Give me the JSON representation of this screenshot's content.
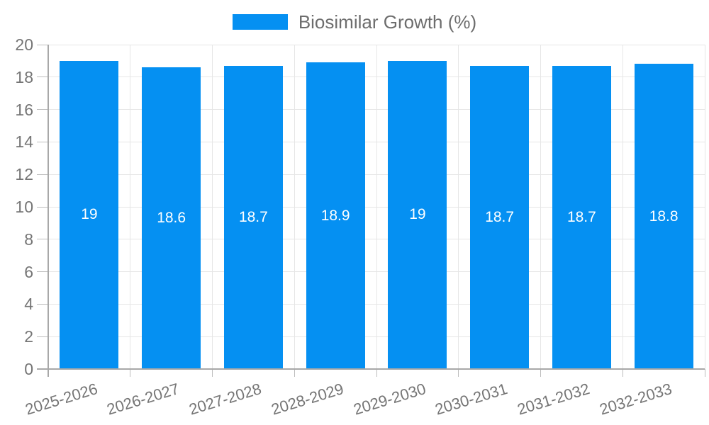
{
  "chart_data": {
    "type": "bar",
    "legend_label": "Biosimilar Growth (%)",
    "legend_position": "top-center",
    "categories": [
      "2025-2026",
      "2026-2027",
      "2027-2028",
      "2028-2029",
      "2029-2030",
      "2030-2031",
      "2031-2032",
      "2032-2033"
    ],
    "values": [
      19,
      18.6,
      18.7,
      18.9,
      19,
      18.7,
      18.7,
      18.8
    ],
    "value_labels": [
      "19",
      "18.6",
      "18.7",
      "18.9",
      "19",
      "18.7",
      "18.7",
      "18.8"
    ],
    "ylim": [
      0,
      20
    ],
    "yticks": [
      0,
      2,
      4,
      6,
      8,
      10,
      12,
      14,
      16,
      18,
      20
    ],
    "grid": true,
    "xlabel": "",
    "ylabel": "",
    "colors": {
      "bar": "#0590f2",
      "bar_label": "#ffffff",
      "axis_line": "#a8a8a8",
      "tick_mark": "#bdbdbd",
      "grid_line": "#e6e6e6",
      "tick_text": "#757575",
      "legend_text": "#6d6d6d"
    }
  }
}
